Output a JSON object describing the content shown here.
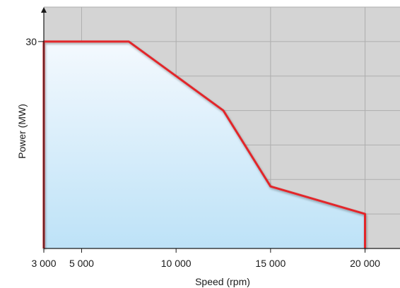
{
  "chart_data": {
    "type": "area",
    "xlabel": "Speed (rpm)",
    "ylabel": "Power (MW)",
    "x_ticks": [
      3000,
      5000,
      10000,
      15000,
      20000
    ],
    "x_tick_labels": [
      "3 000",
      "5 000",
      "10 000",
      "15 000",
      "20 000"
    ],
    "y_ticks": [
      30
    ],
    "y_tick_labels": [
      "30"
    ],
    "xlim": [
      3000,
      21850
    ],
    "ylim": [
      0,
      35
    ],
    "grid": true,
    "series": [
      {
        "points": [
          {
            "x": 3000,
            "y": 0
          },
          {
            "x": 3000,
            "y": 30
          },
          {
            "x": 7500,
            "y": 30
          },
          {
            "x": 12500,
            "y": 20
          },
          {
            "x": 15000,
            "y": 9
          },
          {
            "x": 20000,
            "y": 5
          },
          {
            "x": 20000,
            "y": 0
          }
        ]
      }
    ],
    "colors": {
      "plot_background": "#d4d4d4",
      "grid": "#aeaeae",
      "line": "#e2262b",
      "fill_top": "#f4f9fe",
      "fill_bottom": "#bde2f7",
      "axis": "#1a1a1a"
    }
  }
}
